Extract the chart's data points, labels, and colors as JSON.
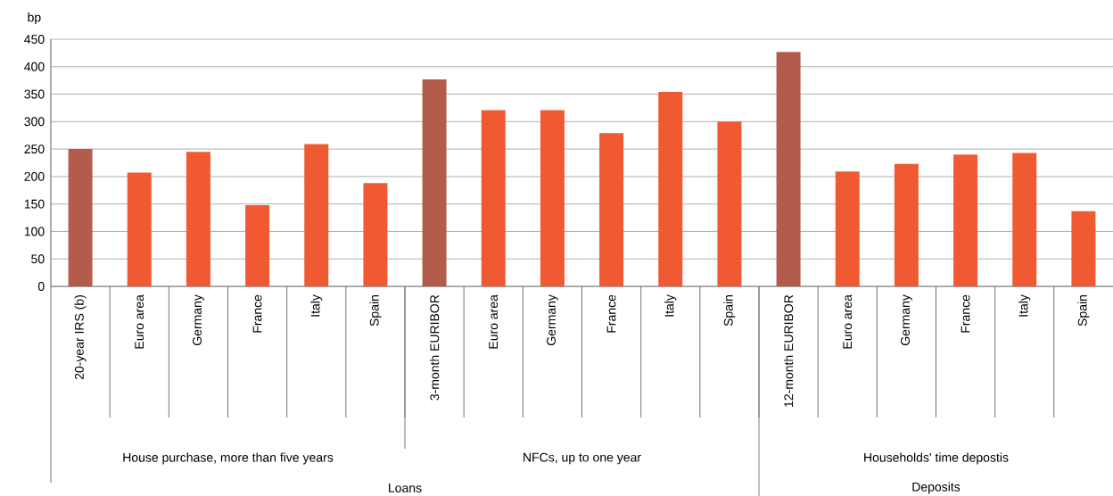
{
  "chart_data": {
    "type": "bar",
    "ylabel": "bp",
    "categories": [
      "20-year IRS (b)",
      "Euro area",
      "Germany",
      "France",
      "Italy",
      "Spain",
      "3-month EURIBOR",
      "Euro area",
      "Germany",
      "France",
      "Italy",
      "Spain",
      "12-month EURIBOR",
      "Euro area",
      "Germany",
      "France",
      "Italy",
      "Spain"
    ],
    "values": [
      250,
      207,
      245,
      148,
      259,
      188,
      377,
      321,
      321,
      279,
      354,
      300,
      427,
      209,
      223,
      240,
      243,
      137
    ],
    "colors": [
      "#b35c4c",
      "#f05a33",
      "#f05a33",
      "#f05a33",
      "#f05a33",
      "#f05a33",
      "#b35c4c",
      "#f05a33",
      "#f05a33",
      "#f05a33",
      "#f05a33",
      "#f05a33",
      "#b35c4c",
      "#f05a33",
      "#f05a33",
      "#f05a33",
      "#f05a33",
      "#f05a33"
    ],
    "ylim": [
      0,
      450
    ],
    "yticks": [
      0,
      50,
      100,
      150,
      200,
      250,
      300,
      350,
      400,
      450
    ],
    "grid": "y",
    "annotations": [
      "House purchase, more than five years",
      "NFCs, up to one year",
      "Households' time depostis",
      "Loans",
      "Deposits"
    ]
  }
}
